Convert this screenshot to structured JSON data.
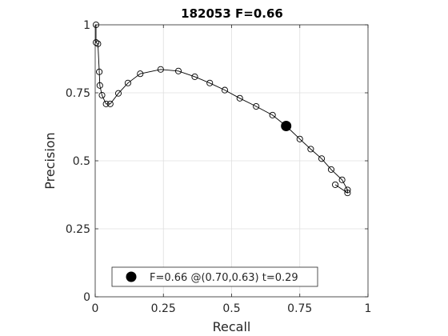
{
  "chart_data": {
    "type": "line",
    "title": "182053 F=0.66",
    "xlabel": "Recall",
    "ylabel": "Precision",
    "xlim": [
      0,
      1
    ],
    "ylim": [
      0,
      1
    ],
    "grid": true,
    "x_ticks": [
      0,
      0.25,
      0.5,
      0.75,
      1
    ],
    "y_ticks": [
      0,
      0.25,
      0.5,
      0.75,
      1
    ],
    "x_tick_labels": [
      "0",
      "0.25",
      "0.5",
      "0.75",
      "1"
    ],
    "y_tick_labels": [
      "0",
      "0.25",
      "0.5",
      "0.75",
      "1"
    ],
    "series": [
      {
        "marker": "open-circle",
        "color": "#000000",
        "points": [
          [
            0.003,
            1.0
          ],
          [
            0.003,
            0.935
          ],
          [
            0.01,
            0.93
          ],
          [
            0.015,
            0.827
          ],
          [
            0.017,
            0.777
          ],
          [
            0.025,
            0.741
          ],
          [
            0.04,
            0.709
          ],
          [
            0.055,
            0.709
          ],
          [
            0.085,
            0.748
          ],
          [
            0.12,
            0.786
          ],
          [
            0.165,
            0.82
          ],
          [
            0.24,
            0.836
          ],
          [
            0.305,
            0.83
          ],
          [
            0.365,
            0.809
          ],
          [
            0.42,
            0.786
          ],
          [
            0.475,
            0.76
          ],
          [
            0.53,
            0.73
          ],
          [
            0.59,
            0.7
          ],
          [
            0.65,
            0.668
          ],
          [
            0.7,
            0.628
          ],
          [
            0.75,
            0.58
          ],
          [
            0.79,
            0.543
          ],
          [
            0.83,
            0.508
          ],
          [
            0.865,
            0.468
          ],
          [
            0.905,
            0.43
          ],
          [
            0.925,
            0.393
          ],
          [
            0.925,
            0.382
          ],
          [
            0.88,
            0.412
          ]
        ]
      }
    ],
    "highlight": {
      "x": 0.7,
      "y": 0.628,
      "marker": "filled-circle",
      "color": "#000000"
    },
    "legend": {
      "placement": "bottom-center",
      "label": "F=0.66 @(0.70,0.63) t=0.29"
    }
  }
}
